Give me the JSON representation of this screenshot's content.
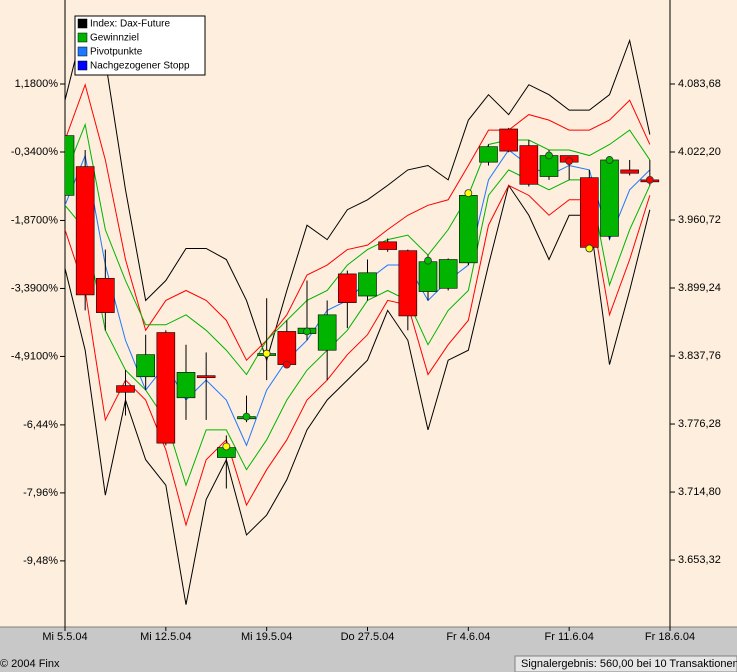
{
  "chart_data": {
    "type": "candlestick",
    "categories": [
      "Mi 5.5.04",
      null,
      null,
      null,
      null,
      "Mi 12.5.04",
      null,
      null,
      null,
      null,
      "Mi 19.5.04",
      null,
      null,
      null,
      null,
      "Do 27.5.04",
      null,
      null,
      null,
      null,
      "Fr 4.6.04",
      null,
      null,
      null,
      null,
      "Fr 11.6.04",
      null,
      null,
      null,
      null,
      "Fr 18.6.04"
    ],
    "xlim": [
      0,
      30
    ],
    "candles": {
      "name": "Index: Dax-Future",
      "color": "#000000",
      "up_color": "#00b400",
      "down_color": "#ff0000",
      "open": [
        3983,
        4009,
        3908,
        3811,
        3819,
        3859,
        3800,
        3820,
        3746,
        3781,
        3839,
        3860,
        3858,
        3843,
        3912,
        3892,
        3941,
        3933,
        3896,
        3899,
        3922,
        4013,
        4043,
        4028,
        4000,
        4019,
        3999,
        3946,
        4006,
        3997,
        null
      ],
      "high": [
        4042,
        4024,
        3934,
        3825,
        3857,
        3861,
        3848,
        3841,
        3766,
        3802,
        3890,
        3870,
        3906,
        3888,
        3915,
        3925,
        3944,
        3934,
        3929,
        3926,
        3988,
        4029,
        4044,
        4033,
        4024,
        4019,
        4006,
        4017,
        4015,
        4015,
        null
      ],
      "low": [
        3979,
        3879,
        3861,
        3784,
        3807,
        3757,
        3780,
        3780,
        3718,
        3778,
        3816,
        3829,
        3852,
        3816,
        3863,
        3888,
        3932,
        3861,
        3888,
        3897,
        3920,
        4010,
        4022,
        3991,
        3997,
        3997,
        3934,
        3943,
        4001,
        3992,
        null
      ],
      "close": [
        4037,
        3893,
        3877,
        3805,
        3839,
        3759,
        3823,
        3819,
        3755,
        3783,
        3840,
        3830,
        3863,
        3875,
        3886,
        3913,
        3934,
        3874,
        3923,
        3925,
        3983,
        4027,
        4023,
        3993,
        4019,
        4013,
        3936,
        4015,
        4003,
        3996,
        null
      ]
    },
    "series": [
      {
        "color": "#000000",
        "values": [
          4069,
          4142,
          4105,
          3988,
          3888,
          3906,
          3935,
          3935,
          3925,
          3888,
          3834,
          3897,
          3956,
          3943,
          3970,
          3979,
          3992,
          4006,
          4010,
          3997,
          4051,
          4074,
          4056,
          4083,
          4074,
          4060,
          4060,
          4074,
          4123,
          4038,
          null
        ]
      },
      {
        "color": "#000000",
        "values": [
          3917,
          3843,
          3712,
          3798,
          3744,
          3721,
          3613,
          3708,
          3744,
          3676,
          3694,
          3726,
          3771,
          3798,
          3816,
          3834,
          3879,
          3852,
          3771,
          3834,
          3843,
          3920,
          3992,
          3965,
          3925,
          3965,
          3965,
          3830,
          3897,
          3970,
          null
        ]
      },
      {
        "color": "#ff0000",
        "values": [
          4033,
          4083,
          4015,
          3925,
          3861,
          3888,
          3897,
          3888,
          3870,
          3834,
          3852,
          3875,
          3911,
          3920,
          3934,
          3938,
          3952,
          3965,
          3974,
          3979,
          4010,
          4042,
          4042,
          4056,
          4051,
          4042,
          4042,
          4051,
          4069,
          4029,
          null
        ]
      },
      {
        "color": "#ff0000",
        "values": [
          3952,
          3897,
          3780,
          3816,
          3798,
          3753,
          3685,
          3744,
          3762,
          3703,
          3735,
          3762,
          3798,
          3816,
          3839,
          3857,
          3888,
          3884,
          3821,
          3848,
          3870,
          3956,
          3992,
          3983,
          3965,
          3979,
          3979,
          3875,
          3925,
          3983,
          null
        ]
      },
      {
        "name": "Gewinnziel",
        "color": "#00b400",
        "values": [
          4001,
          4047,
          3952,
          3906,
          3866,
          3866,
          3875,
          3861,
          3843,
          3821,
          3852,
          3870,
          3888,
          3897,
          3920,
          3934,
          3943,
          3947,
          3929,
          3952,
          3983,
          4029,
          4033,
          4033,
          4024,
          4024,
          4019,
          4029,
          4042,
          4015,
          null
        ]
      },
      {
        "color": "#00b400",
        "values": [
          3974,
          3952,
          3861,
          3825,
          3807,
          3780,
          3721,
          3771,
          3771,
          3735,
          3762,
          3798,
          3825,
          3843,
          3861,
          3888,
          3897,
          3888,
          3848,
          3879,
          3897,
          3983,
          4006,
          3997,
          3988,
          3997,
          3997,
          3902,
          3952,
          3992,
          null
        ]
      },
      {
        "name": "Pivotpunkte",
        "color": "#1e78ff",
        "values": [
          3974,
          4019,
          3920,
          3852,
          3807,
          3830,
          3798,
          3816,
          3798,
          3757,
          3807,
          3834,
          3852,
          3879,
          3888,
          3906,
          3920,
          3920,
          3888,
          3906,
          3920,
          3997,
          4024,
          4010,
          4001,
          4010,
          4006,
          3943,
          3988,
          4006,
          null
        ]
      }
    ],
    "stops": {
      "name": "Nachgezogener Stopp",
      "color": "#0000ff",
      "values": [
        null,
        null,
        null,
        null,
        null,
        null,
        null,
        null,
        3756,
        3783,
        3840,
        3830,
        3860,
        null,
        null,
        null,
        null,
        null,
        3924,
        null,
        3985,
        null,
        null,
        null,
        4019,
        4014,
        3935,
        4015,
        null,
        3997,
        null
      ],
      "colors": [
        null,
        null,
        null,
        null,
        null,
        null,
        null,
        null,
        "#ffff00",
        "#00c000",
        "#ffff00",
        "#ff0000",
        "#00c000",
        null,
        null,
        null,
        null,
        null,
        "#00c000",
        null,
        "#ffff00",
        null,
        null,
        null,
        "#00c000",
        "#ff0000",
        "#ffff00",
        "#00c000",
        null,
        "#ff0000",
        null
      ]
    },
    "ylim": [
      3592.8,
      4159.6
    ],
    "yticks": [
      {
        "value": 4083.68,
        "label": "4.083,68"
      },
      {
        "value": 4022.2,
        "label": "4.022,20"
      },
      {
        "value": 3960.72,
        "label": "3.960,72"
      },
      {
        "value": 3899.24,
        "label": "3.899,24"
      },
      {
        "value": 3837.76,
        "label": "3.837,76"
      },
      {
        "value": 3776.28,
        "label": "3.776,28"
      },
      {
        "value": 3714.8,
        "label": "3.714,80"
      },
      {
        "value": 3653.32,
        "label": "3.653,32"
      }
    ],
    "y2lim": [
      -10.958,
      3.058
    ],
    "y2ticks": [
      {
        "value": 1.18,
        "label": "1,1800%"
      },
      {
        "value": -0.34,
        "label": "-0,3400%"
      },
      {
        "value": -1.87,
        "label": "-1,8700%"
      },
      {
        "value": -3.39,
        "label": "-3,3900%"
      },
      {
        "value": -4.91,
        "label": "-4,9100%"
      },
      {
        "value": -6.44,
        "label": "-6,44%"
      },
      {
        "value": -7.96,
        "label": "-7,96%"
      },
      {
        "value": -9.48,
        "label": "-9,48%"
      }
    ],
    "legend": "top-left",
    "copyright": "© 2004 Finx",
    "summary": "Signalergebnis: 560,00 bei 10 Transaktionen"
  }
}
